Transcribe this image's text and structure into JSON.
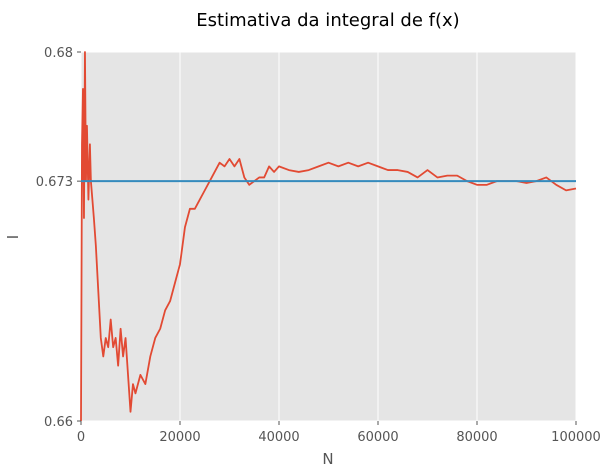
{
  "chart_data": {
    "type": "line",
    "title": "Estimativa da integral de f(x)",
    "xlabel": "N",
    "ylabel": "I",
    "xlim": [
      0,
      100000
    ],
    "ylim": [
      0.66,
      0.68
    ],
    "xticks": [
      "0",
      "20000",
      "40000",
      "60000",
      "80000",
      "100000"
    ],
    "yticks": [
      "0.66",
      "0.673",
      "0.68"
    ],
    "grid": true,
    "legend": "none",
    "colors": {
      "background": "#e5e5e5",
      "grid": "#ffffff",
      "estimate": "#e24a33",
      "reference": "#348abd"
    },
    "series": [
      {
        "x": [
          0,
          200,
          400,
          600,
          800,
          1000,
          1200,
          1500,
          1800,
          2000,
          2300,
          2600,
          3000,
          3500,
          4000,
          4500,
          5000,
          5500,
          6000,
          6500,
          7000,
          7500,
          8000,
          8500,
          9000,
          9500,
          10000,
          10500,
          11000,
          12000,
          13000,
          14000,
          15000,
          16000,
          17000,
          18000,
          19000,
          20000,
          21000,
          22000,
          23000,
          24000,
          25000,
          26000,
          27000,
          28000,
          29000,
          30000,
          31000,
          32000,
          33000,
          34000,
          35000,
          36000,
          37000,
          38000,
          39000,
          40000,
          42000,
          44000,
          46000,
          48000,
          50000,
          52000,
          54000,
          56000,
          58000,
          60000,
          62000,
          64000,
          66000,
          68000,
          70000,
          72000,
          74000,
          76000,
          78000,
          80000,
          82000,
          84000,
          86000,
          88000,
          90000,
          92000,
          94000,
          96000,
          98000,
          100000
        ],
        "y": [
          0.66,
          0.675,
          0.678,
          0.671,
          0.68,
          0.673,
          0.676,
          0.672,
          0.675,
          0.673,
          0.672,
          0.671,
          0.6695,
          0.667,
          0.6645,
          0.6635,
          0.6645,
          0.664,
          0.6655,
          0.664,
          0.6645,
          0.663,
          0.665,
          0.6635,
          0.6645,
          0.6625,
          0.6605,
          0.662,
          0.6615,
          0.6625,
          0.662,
          0.6635,
          0.6645,
          0.665,
          0.666,
          0.6665,
          0.6675,
          0.6685,
          0.6705,
          0.6715,
          0.6715,
          0.672,
          0.6725,
          0.673,
          0.6735,
          0.674,
          0.6738,
          0.6742,
          0.6738,
          0.6742,
          0.6732,
          0.6728,
          0.673,
          0.6732,
          0.6732,
          0.6738,
          0.6735,
          0.6738,
          0.6736,
          0.6735,
          0.6736,
          0.6738,
          0.674,
          0.6738,
          0.674,
          0.6738,
          0.674,
          0.6738,
          0.6736,
          0.6736,
          0.6735,
          0.6732,
          0.6736,
          0.6732,
          0.6733,
          0.6733,
          0.673,
          0.6728,
          0.6728,
          0.673,
          0.673,
          0.673,
          0.6729,
          0.673,
          0.6732,
          0.6728,
          0.6725,
          0.6726
        ]
      },
      {
        "x": [
          0,
          100000
        ],
        "y": [
          0.673,
          0.673
        ]
      }
    ]
  }
}
